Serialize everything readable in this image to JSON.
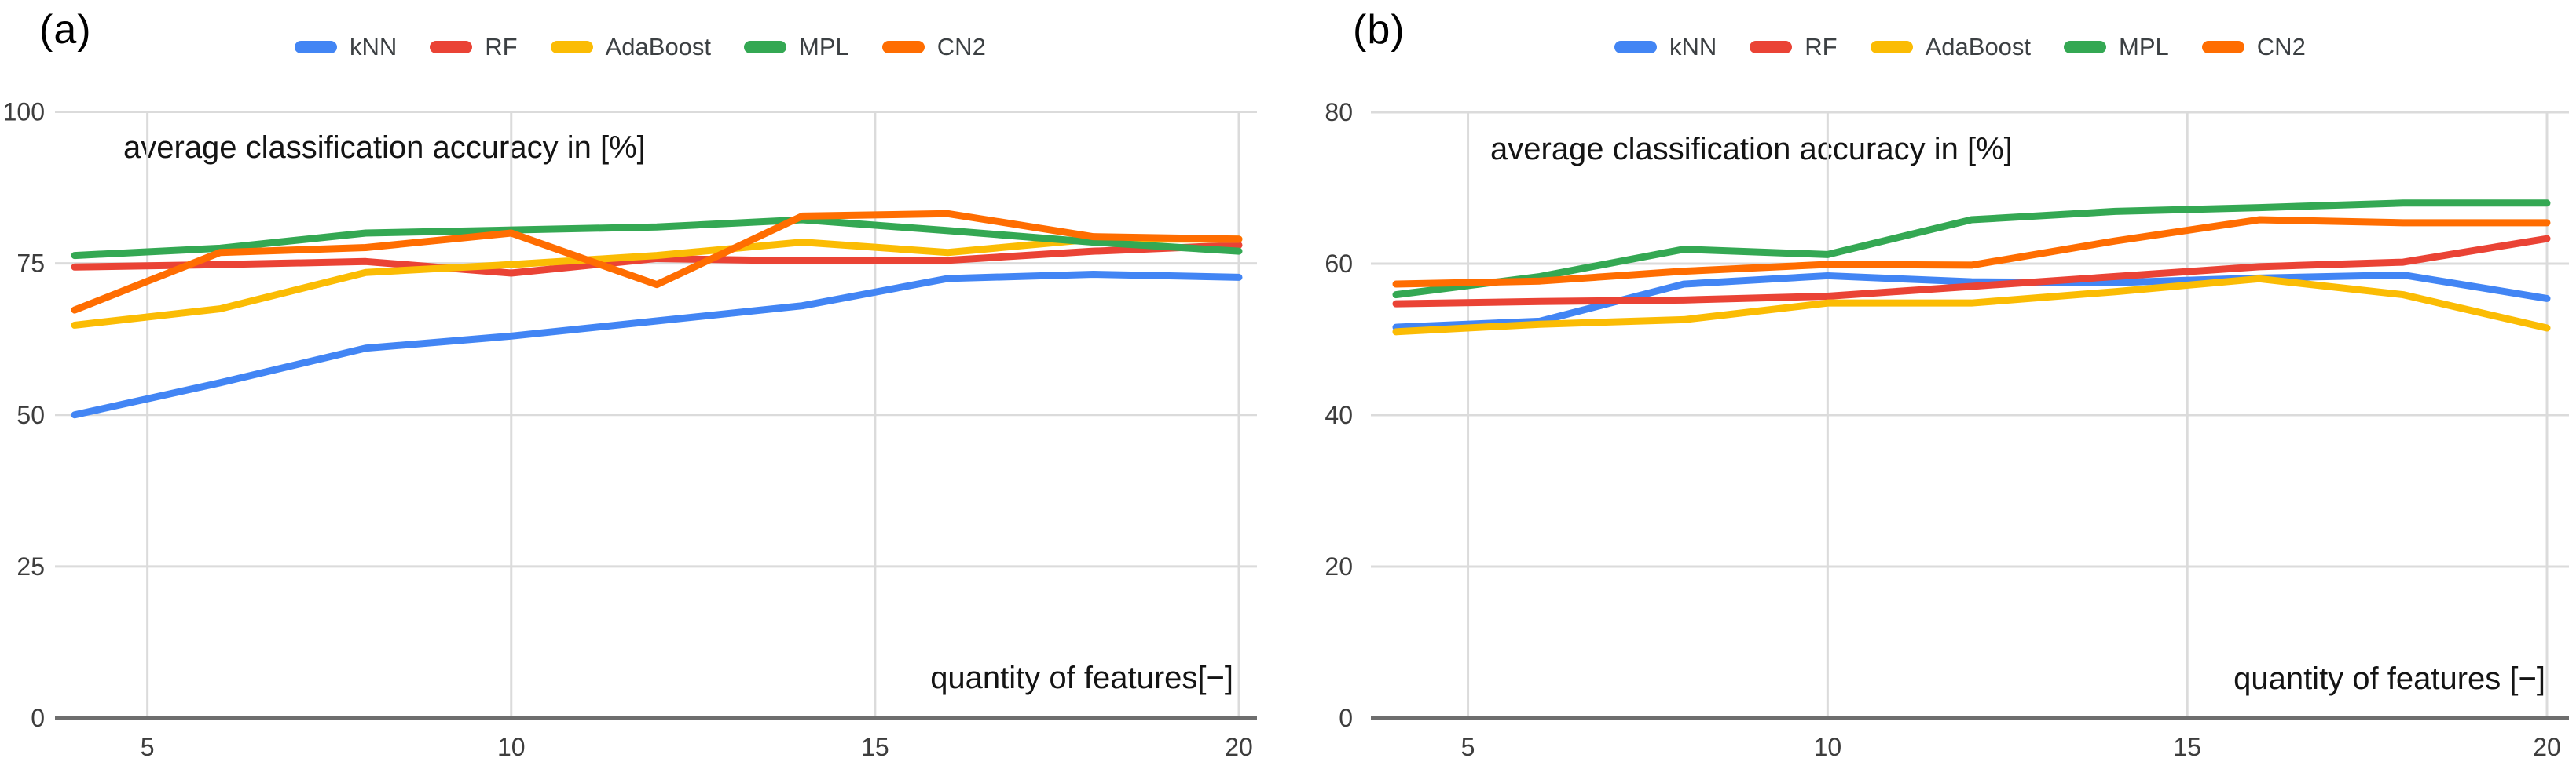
{
  "figure": {
    "background": "#ffffff",
    "description": "two side-by-side line charts of classifier accuracy versus number of features"
  },
  "style": {
    "grid_color": "#dbdbdb",
    "axis_color": "#6e6e6e",
    "tick_label_color": "#3d3d3d",
    "title_color": "#141414",
    "legend_text_color": "#3c4043"
  },
  "chart_data": [
    {
      "type": "line",
      "panel_label": "(a)",
      "title": "average classification accuracy in [%]",
      "xlabel": "quantity of features[−]",
      "x": [
        4,
        6,
        8,
        10,
        12,
        14,
        16,
        18,
        20
      ],
      "x_ticks": [
        5,
        10,
        15,
        20
      ],
      "ylim": [
        0,
        100
      ],
      "y_ticks": [
        0,
        25,
        50,
        75,
        100
      ],
      "grid": true,
      "legend_position": "top-center",
      "series": [
        {
          "name": "kNN",
          "color": "#4285F4",
          "values": [
            50,
            55.3,
            61,
            63,
            65.5,
            68,
            72.5,
            73.2,
            72.7
          ]
        },
        {
          "name": "RF",
          "color": "#EA4335",
          "values": [
            74.4,
            74.8,
            75.3,
            73.4,
            75.8,
            75.4,
            75.5,
            77,
            78
          ]
        },
        {
          "name": "AdaBoost",
          "color": "#FBBC04",
          "values": [
            64.8,
            67.5,
            73.5,
            74.8,
            76.3,
            78.5,
            76.8,
            79,
            79
          ]
        },
        {
          "name": "MPL",
          "color": "#34A853",
          "values": [
            76.3,
            77.5,
            80,
            80.5,
            81,
            82.2,
            80.4,
            78.5,
            77
          ]
        },
        {
          "name": "CN2",
          "color": "#FF6D01",
          "values": [
            67.3,
            76.8,
            77.6,
            80,
            71.5,
            82.8,
            83.2,
            79.4,
            79
          ]
        }
      ]
    },
    {
      "type": "line",
      "panel_label": "(b)",
      "title": "average classification accuracy in [%]",
      "xlabel": "quantity of features [−]",
      "x": [
        4,
        6,
        8,
        10,
        12,
        14,
        16,
        18,
        20
      ],
      "x_ticks": [
        5,
        10,
        15,
        20
      ],
      "ylim": [
        0,
        80
      ],
      "y_ticks": [
        0,
        20,
        40,
        60,
        80
      ],
      "grid": true,
      "legend_position": "top-center",
      "series": [
        {
          "name": "kNN",
          "color": "#4285F4",
          "values": [
            51.6,
            52.4,
            57.3,
            58.4,
            57.6,
            57.5,
            58.1,
            58.5,
            55.4
          ]
        },
        {
          "name": "RF",
          "color": "#EA4335",
          "values": [
            54.7,
            55,
            55.2,
            55.7,
            57,
            58.3,
            59.6,
            60.2,
            63.3
          ]
        },
        {
          "name": "AdaBoost",
          "color": "#FBBC04",
          "values": [
            51,
            52,
            52.6,
            54.8,
            54.8,
            56.3,
            58,
            55.9,
            51.5
          ]
        },
        {
          "name": "MPL",
          "color": "#34A853",
          "values": [
            55.9,
            58.3,
            61.9,
            61.2,
            65.8,
            66.9,
            67.4,
            68,
            68
          ]
        },
        {
          "name": "CN2",
          "color": "#FF6D01",
          "values": [
            57.3,
            57.7,
            59,
            59.9,
            59.8,
            63,
            65.8,
            65.4,
            65.4
          ]
        }
      ]
    }
  ]
}
